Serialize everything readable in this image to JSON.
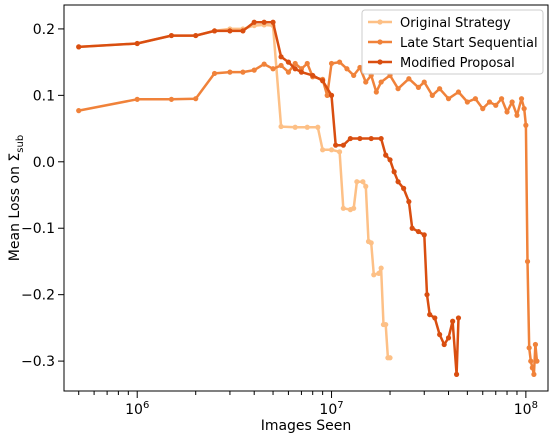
{
  "chart_data": {
    "type": "line",
    "title": "",
    "xlabel": "Images Seen",
    "ylabel": "Mean Loss on Σ_sub",
    "ylabel_main": "Mean Loss on Σ",
    "ylabel_sub": "sub",
    "xscale": "log",
    "xlim": [
      420000,
      130000000
    ],
    "ylim": [
      -0.345,
      0.236
    ],
    "x_major_ticks": [
      {
        "value": 1000000,
        "mant": "10",
        "exp": "6"
      },
      {
        "value": 10000000,
        "mant": "10",
        "exp": "7"
      },
      {
        "value": 100000000,
        "mant": "10",
        "exp": "8"
      }
    ],
    "y_ticks": [
      {
        "value": 0.2,
        "label": "0.2"
      },
      {
        "value": 0.1,
        "label": "0.1"
      },
      {
        "value": 0.0,
        "label": "0.0"
      },
      {
        "value": -0.1,
        "label": "−0.1"
      },
      {
        "value": -0.2,
        "label": "−0.2"
      },
      {
        "value": -0.3,
        "label": "−0.3"
      }
    ],
    "grid": false,
    "legend_position": "top-right",
    "series": [
      {
        "name": "Original Strategy",
        "color": "#fdc086",
        "points": [
          [
            500000,
            0.173
          ],
          [
            1000000,
            0.178
          ],
          [
            1500000,
            0.19
          ],
          [
            2000000,
            0.19
          ],
          [
            2500000,
            0.197
          ],
          [
            3000000,
            0.2
          ],
          [
            3500000,
            0.2
          ],
          [
            4000000,
            0.205
          ],
          [
            4500000,
            0.206
          ],
          [
            5000000,
            0.205
          ],
          [
            5500000,
            0.053
          ],
          [
            6500000,
            0.052
          ],
          [
            7500000,
            0.052
          ],
          [
            8500000,
            0.052
          ],
          [
            9000000,
            0.018
          ],
          [
            10000000,
            0.018
          ],
          [
            11000000,
            0.015
          ],
          [
            11500000,
            -0.07
          ],
          [
            12500000,
            -0.072
          ],
          [
            13000000,
            -0.07
          ],
          [
            13500000,
            -0.03
          ],
          [
            14500000,
            -0.03
          ],
          [
            15000000,
            -0.037
          ],
          [
            15500000,
            -0.12
          ],
          [
            16000000,
            -0.122
          ],
          [
            16500000,
            -0.17
          ],
          [
            17500000,
            -0.168
          ],
          [
            18000000,
            -0.16
          ],
          [
            18500000,
            -0.245
          ],
          [
            19000000,
            -0.245
          ],
          [
            19500000,
            -0.295
          ],
          [
            20000000,
            -0.295
          ]
        ]
      },
      {
        "name": "Late Start Sequential",
        "color": "#f0823a",
        "points": [
          [
            500000,
            0.077
          ],
          [
            1000000,
            0.094
          ],
          [
            1500000,
            0.094
          ],
          [
            2000000,
            0.095
          ],
          [
            2500000,
            0.133
          ],
          [
            3000000,
            0.135
          ],
          [
            3500000,
            0.135
          ],
          [
            4000000,
            0.138
          ],
          [
            4500000,
            0.147
          ],
          [
            5000000,
            0.14
          ],
          [
            5500000,
            0.145
          ],
          [
            6000000,
            0.135
          ],
          [
            6500000,
            0.148
          ],
          [
            7000000,
            0.14
          ],
          [
            7500000,
            0.148
          ],
          [
            8000000,
            0.128
          ],
          [
            9000000,
            0.124
          ],
          [
            9500000,
            0.1
          ],
          [
            10000000,
            0.148
          ],
          [
            11000000,
            0.15
          ],
          [
            12000000,
            0.14
          ],
          [
            13000000,
            0.13
          ],
          [
            14000000,
            0.142
          ],
          [
            15000000,
            0.12
          ],
          [
            16000000,
            0.13
          ],
          [
            17000000,
            0.105
          ],
          [
            18000000,
            0.12
          ],
          [
            20000000,
            0.13
          ],
          [
            22000000,
            0.11
          ],
          [
            25000000,
            0.125
          ],
          [
            28000000,
            0.112
          ],
          [
            30000000,
            0.12
          ],
          [
            33000000,
            0.1
          ],
          [
            36000000,
            0.11
          ],
          [
            40000000,
            0.095
          ],
          [
            45000000,
            0.105
          ],
          [
            50000000,
            0.09
          ],
          [
            55000000,
            0.095
          ],
          [
            60000000,
            0.08
          ],
          [
            65000000,
            0.09
          ],
          [
            70000000,
            0.085
          ],
          [
            75000000,
            0.095
          ],
          [
            80000000,
            0.075
          ],
          [
            85000000,
            0.09
          ],
          [
            90000000,
            0.07
          ],
          [
            95000000,
            0.095
          ],
          [
            98000000,
            0.08
          ],
          [
            100000000,
            0.055
          ],
          [
            102000000,
            -0.15
          ],
          [
            104000000,
            -0.28
          ],
          [
            106000000,
            -0.3
          ],
          [
            108000000,
            -0.31
          ],
          [
            110000000,
            -0.32
          ],
          [
            112000000,
            -0.275
          ],
          [
            114000000,
            -0.3
          ]
        ]
      },
      {
        "name": "Modified Proposal",
        "color": "#d94e10",
        "points": [
          [
            500000,
            0.173
          ],
          [
            1000000,
            0.178
          ],
          [
            1500000,
            0.19
          ],
          [
            2000000,
            0.19
          ],
          [
            2500000,
            0.197
          ],
          [
            3000000,
            0.197
          ],
          [
            3500000,
            0.197
          ],
          [
            4000000,
            0.21
          ],
          [
            4500000,
            0.21
          ],
          [
            5000000,
            0.21
          ],
          [
            5500000,
            0.158
          ],
          [
            6000000,
            0.15
          ],
          [
            6500000,
            0.14
          ],
          [
            7000000,
            0.135
          ],
          [
            8000000,
            0.13
          ],
          [
            9000000,
            0.122
          ],
          [
            10000000,
            0.1
          ],
          [
            10500000,
            0.025
          ],
          [
            11500000,
            0.025
          ],
          [
            12500000,
            0.035
          ],
          [
            14000000,
            0.035
          ],
          [
            16000000,
            0.035
          ],
          [
            18000000,
            0.035
          ],
          [
            19000000,
            0.01
          ],
          [
            20000000,
            0.003
          ],
          [
            21000000,
            -0.015
          ],
          [
            22000000,
            -0.03
          ],
          [
            23500000,
            -0.04
          ],
          [
            25000000,
            -0.06
          ],
          [
            26000000,
            -0.1
          ],
          [
            28000000,
            -0.105
          ],
          [
            30000000,
            -0.11
          ],
          [
            31000000,
            -0.2
          ],
          [
            32000000,
            -0.23
          ],
          [
            34000000,
            -0.235
          ],
          [
            36000000,
            -0.26
          ],
          [
            38000000,
            -0.275
          ],
          [
            40000000,
            -0.265
          ],
          [
            42000000,
            -0.24
          ],
          [
            44000000,
            -0.32
          ],
          [
            45000000,
            -0.235
          ]
        ]
      }
    ]
  }
}
